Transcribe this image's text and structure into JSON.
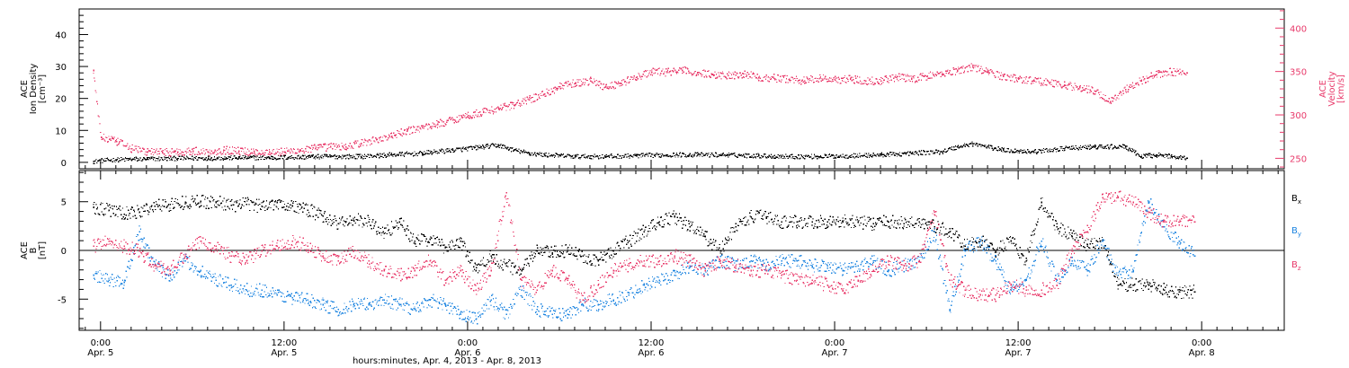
{
  "colors": {
    "black": "#000000",
    "magenta": "#E8396A",
    "blue": "#1C84E0"
  },
  "x_axis": {
    "title": "hours:minutes, Apr. 4, 2013 - Apr. 8, 2013",
    "ticks": [
      {
        "t": "0:00",
        "d": "Apr. 5",
        "h": 24
      },
      {
        "t": "12:00",
        "d": "Apr. 5",
        "h": 36
      },
      {
        "t": "0:00",
        "d": "Apr. 6",
        "h": 48
      },
      {
        "t": "12:00",
        "d": "Apr. 6",
        "h": 60
      },
      {
        "t": "0:00",
        "d": "Apr. 7",
        "h": 72
      },
      {
        "t": "12:00",
        "d": "Apr. 7",
        "h": 84
      },
      {
        "t": "0:00",
        "d": "Apr. 8",
        "h": 96
      }
    ],
    "range_hours": [
      22.6,
      101.4
    ]
  },
  "top_panel": {
    "left_label": [
      "ACE",
      "Ion Density",
      "[cm⁻³]"
    ],
    "right_label": [
      "ACE",
      "Velocity",
      "[km/s]"
    ],
    "left_ticks": [
      "0",
      "10",
      "20",
      "30",
      "40"
    ],
    "right_ticks": [
      "250",
      "300",
      "350",
      "400"
    ]
  },
  "bottom_panel": {
    "left_label": [
      "ACE",
      "B",
      "[nT]"
    ],
    "ticks": [
      "5",
      "0",
      "-5"
    ],
    "legend": [
      {
        "name": "Bx",
        "base": "B",
        "sub": "x",
        "color": "#000000"
      },
      {
        "name": "By",
        "base": "B",
        "sub": "y",
        "color": "#1C84E0"
      },
      {
        "name": "Bz",
        "base": "B",
        "sub": "z",
        "color": "#E8396A"
      }
    ]
  },
  "chart_data": [
    {
      "type": "scatter",
      "title": "",
      "x_unit": "hours since Apr. 4, 2013 0:00",
      "xlim": [
        22.6,
        101.4
      ],
      "ylim_left": [
        -2,
        48
      ],
      "ylim_right": [
        238,
        422
      ],
      "ylabel_left": "ACE Ion Density [cm⁻³]",
      "ylabel_right": "ACE Velocity [km/s]",
      "series": [
        {
          "name": "Velocity",
          "axis": "right",
          "color": "#E8396A",
          "x": [
            23.5,
            24.0,
            25,
            26,
            27,
            28,
            29,
            30,
            31,
            32,
            33,
            34,
            35,
            36,
            37,
            38,
            39,
            40,
            41,
            42,
            43,
            44,
            45,
            46,
            47,
            48,
            49,
            50,
            51,
            52,
            53,
            54,
            55,
            56,
            57,
            58,
            59,
            60,
            61,
            62,
            63,
            64,
            65,
            66,
            67,
            68,
            69,
            70,
            71,
            72,
            73,
            74,
            75,
            76,
            77,
            78,
            79,
            80,
            81,
            82,
            83,
            84,
            85,
            86,
            87,
            88,
            89,
            90,
            91,
            92,
            93,
            94,
            95
          ],
          "y": [
            352,
            275,
            270,
            262,
            258,
            258,
            258,
            259,
            258,
            260,
            259,
            258,
            258,
            258,
            260,
            262,
            264,
            264,
            268,
            272,
            276,
            282,
            286,
            290,
            295,
            300,
            304,
            308,
            312,
            318,
            325,
            333,
            337,
            340,
            333,
            337,
            344,
            350,
            350,
            352,
            349,
            347,
            346,
            348,
            344,
            343,
            342,
            340,
            343,
            341,
            342,
            340,
            340,
            344,
            342,
            345,
            348,
            352,
            356,
            350,
            345,
            342,
            340,
            338,
            335,
            332,
            328,
            316,
            330,
            340,
            347,
            350,
            349
          ]
        },
        {
          "name": "Ion Density",
          "axis": "left",
          "color": "#000000",
          "x": [
            23.5,
            25,
            27,
            29,
            31,
            33,
            35,
            37,
            39,
            41,
            43,
            45,
            47,
            49,
            50,
            51,
            52,
            53,
            55,
            57,
            59,
            61,
            63,
            65,
            67,
            69,
            71,
            73,
            75,
            77,
            79,
            80,
            81,
            82,
            83,
            85,
            87,
            89,
            91,
            92,
            93,
            94,
            95
          ],
          "y": [
            0.5,
            1,
            1.2,
            1.4,
            1.5,
            1.6,
            1.6,
            1.8,
            2.0,
            2.0,
            2.5,
            3,
            4,
            5,
            5.5,
            4,
            3,
            2.5,
            2,
            2,
            2.2,
            2.5,
            2.5,
            2.5,
            2.2,
            2.0,
            2.0,
            2.2,
            2.5,
            3,
            3.5,
            5,
            6,
            5,
            4,
            3.5,
            4.5,
            5,
            5,
            2,
            2.5,
            2,
            1.5
          ]
        }
      ]
    },
    {
      "type": "scatter",
      "title": "",
      "x_unit": "hours since Apr. 4, 2013 0:00",
      "xlim": [
        22.6,
        101.4
      ],
      "ylim": [
        -8.2,
        8.2
      ],
      "ylabel": "ACE B [nT]",
      "series": [
        {
          "name": "Bx",
          "color": "#000000",
          "x": [
            23.5,
            24.5,
            25.5,
            26.5,
            27.5,
            28.5,
            29.5,
            30.5,
            31.5,
            32.5,
            33.5,
            34.5,
            35.5,
            36.5,
            37.5,
            38.5,
            39.5,
            40.5,
            41.5,
            42.5,
            43.5,
            44.5,
            45.5,
            46.5,
            47.5,
            48.5,
            49.5,
            50.5,
            51.5,
            52.5,
            53.5,
            54.5,
            55.5,
            56.5,
            57.5,
            58.5,
            59.5,
            60.5,
            61.5,
            62.5,
            63.5,
            64.5,
            65.5,
            66.5,
            67.5,
            68.5,
            69.5,
            70.5,
            71.5,
            72.5,
            73.5,
            74.5,
            75.5,
            76.5,
            77.5,
            78.5,
            79.5,
            80.5,
            81.5,
            82.5,
            83.5,
            84.5,
            85.5,
            86.5,
            87.5,
            88.5,
            89.5,
            90.5,
            91.5,
            92.5,
            93.5,
            94.5,
            95.5
          ],
          "y": [
            4.5,
            4.2,
            3.8,
            4.0,
            4.6,
            4.8,
            5.0,
            5.1,
            5.0,
            4.7,
            4.8,
            4.6,
            5.0,
            4.6,
            4.2,
            3.6,
            2.8,
            3.2,
            3.0,
            1.8,
            3.0,
            1.0,
            1.2,
            0.4,
            1.0,
            -2.0,
            -0.5,
            -1.5,
            -2.0,
            0.0,
            -0.2,
            0.0,
            -0.5,
            -1.0,
            0.0,
            1.0,
            2.0,
            3.0,
            3.5,
            2.5,
            1.5,
            0.0,
            2.5,
            3.5,
            3.5,
            3.0,
            3.0,
            3.0,
            3.0,
            3.0,
            3.0,
            2.8,
            3.0,
            2.8,
            3.0,
            2.5,
            2.0,
            0.5,
            1.0,
            0.0,
            1.0,
            -1.0,
            5.0,
            2.5,
            1.5,
            0.5,
            1.0,
            -3.5,
            -3.5,
            -3.5,
            -4.0,
            -4.2,
            -4.2
          ]
        },
        {
          "name": "By",
          "color": "#1C84E0",
          "x": [
            23.5,
            24.5,
            25.5,
            26.5,
            27.5,
            28.5,
            29.5,
            30.5,
            31.5,
            32.5,
            33.5,
            34.5,
            35.5,
            36.5,
            37.5,
            38.5,
            39.5,
            40.5,
            41.5,
            42.5,
            43.5,
            44.5,
            45.5,
            46.5,
            47.5,
            48.5,
            49.5,
            50.5,
            51.5,
            52.5,
            53.5,
            54.5,
            55.5,
            56.5,
            57.5,
            58.5,
            59.5,
            60.5,
            61.5,
            62.5,
            63.5,
            64.5,
            65.5,
            66.5,
            67.5,
            68.5,
            69.5,
            70.5,
            71.5,
            72.5,
            73.5,
            74.5,
            75.5,
            76.5,
            77.5,
            78.5,
            79.5,
            80.5,
            81.5,
            82.5,
            83.5,
            84.5,
            85.5,
            86.5,
            87.5,
            88.5,
            89.5,
            90.5,
            91.5,
            92.5,
            93.5,
            94.5,
            95.5
          ],
          "y": [
            -2.5,
            -3.0,
            -3.2,
            2.0,
            -1.5,
            -2.5,
            -1.0,
            -2.0,
            -3.0,
            -3.5,
            -4.0,
            -4.0,
            -4.5,
            -4.8,
            -5.0,
            -5.5,
            -6.0,
            -5.5,
            -5.5,
            -5.0,
            -5.5,
            -6.0,
            -5.0,
            -5.5,
            -6.5,
            -7.0,
            -5.0,
            -6.5,
            -4.0,
            -6.0,
            -6.5,
            -6.5,
            -5.5,
            -5.5,
            -5.0,
            -4.5,
            -3.5,
            -3.0,
            -2.5,
            -1.5,
            -2.0,
            -1.0,
            -1.5,
            -1.0,
            -1.5,
            -1.0,
            -1.0,
            -1.5,
            -1.5,
            -2.0,
            -1.5,
            -1.0,
            -2.0,
            -1.5,
            -1.0,
            2.0,
            -6.0,
            0.0,
            1.0,
            -1.0,
            -4.0,
            -3.0,
            1.0,
            -3.0,
            -1.0,
            -2.0,
            1.0,
            -2.5,
            -2.0,
            5.0,
            2.5,
            1.0,
            -0.5
          ]
        },
        {
          "name": "Bz",
          "color": "#E8396A",
          "x": [
            23.5,
            24.5,
            25.5,
            26.5,
            27.5,
            28.5,
            29.5,
            30.5,
            31.5,
            32.5,
            33.5,
            34.5,
            35.5,
            36.5,
            37.5,
            38.5,
            39.5,
            40.5,
            41.5,
            42.5,
            43.5,
            44.5,
            45.5,
            46.5,
            47.5,
            48.5,
            49.5,
            50.5,
            51.5,
            52.5,
            53.5,
            54.5,
            55.5,
            56.5,
            57.5,
            58.5,
            59.5,
            60.5,
            61.5,
            62.5,
            63.5,
            64.5,
            65.5,
            66.5,
            67.5,
            68.5,
            69.5,
            70.5,
            71.5,
            72.5,
            73.5,
            74.5,
            75.5,
            76.5,
            77.5,
            78.5,
            79.5,
            80.5,
            81.5,
            82.5,
            83.5,
            84.5,
            85.5,
            86.5,
            87.5,
            88.5,
            89.5,
            90.5,
            91.5,
            92.5,
            93.5,
            94.5,
            95.5
          ],
          "y": [
            0.5,
            1.0,
            0.5,
            0.0,
            -1.5,
            -2.0,
            -0.5,
            1.0,
            0.5,
            -0.5,
            -1.0,
            0.0,
            0.5,
            1.0,
            0.5,
            -0.5,
            -1.0,
            0.0,
            -1.0,
            -2.0,
            -2.5,
            -2.0,
            -1.0,
            -3.0,
            -2.0,
            -4.0,
            -2.0,
            6.0,
            -3.0,
            -4.0,
            -2.0,
            -3.0,
            -5.0,
            -3.5,
            -2.0,
            -1.5,
            -1.0,
            -1.0,
            -0.5,
            -1.0,
            -2.0,
            -1.0,
            -1.5,
            -2.0,
            -2.0,
            -2.5,
            -3.0,
            -3.0,
            -3.5,
            -4.0,
            -3.0,
            -2.0,
            -1.0,
            -1.5,
            -1.0,
            4.0,
            -3.0,
            -4.0,
            -4.5,
            -4.5,
            -3.5,
            -4.0,
            -4.0,
            -3.5,
            0.0,
            2.0,
            5.5,
            5.5,
            5.0,
            4.0,
            3.0,
            3.0,
            3.0
          ]
        }
      ]
    }
  ]
}
